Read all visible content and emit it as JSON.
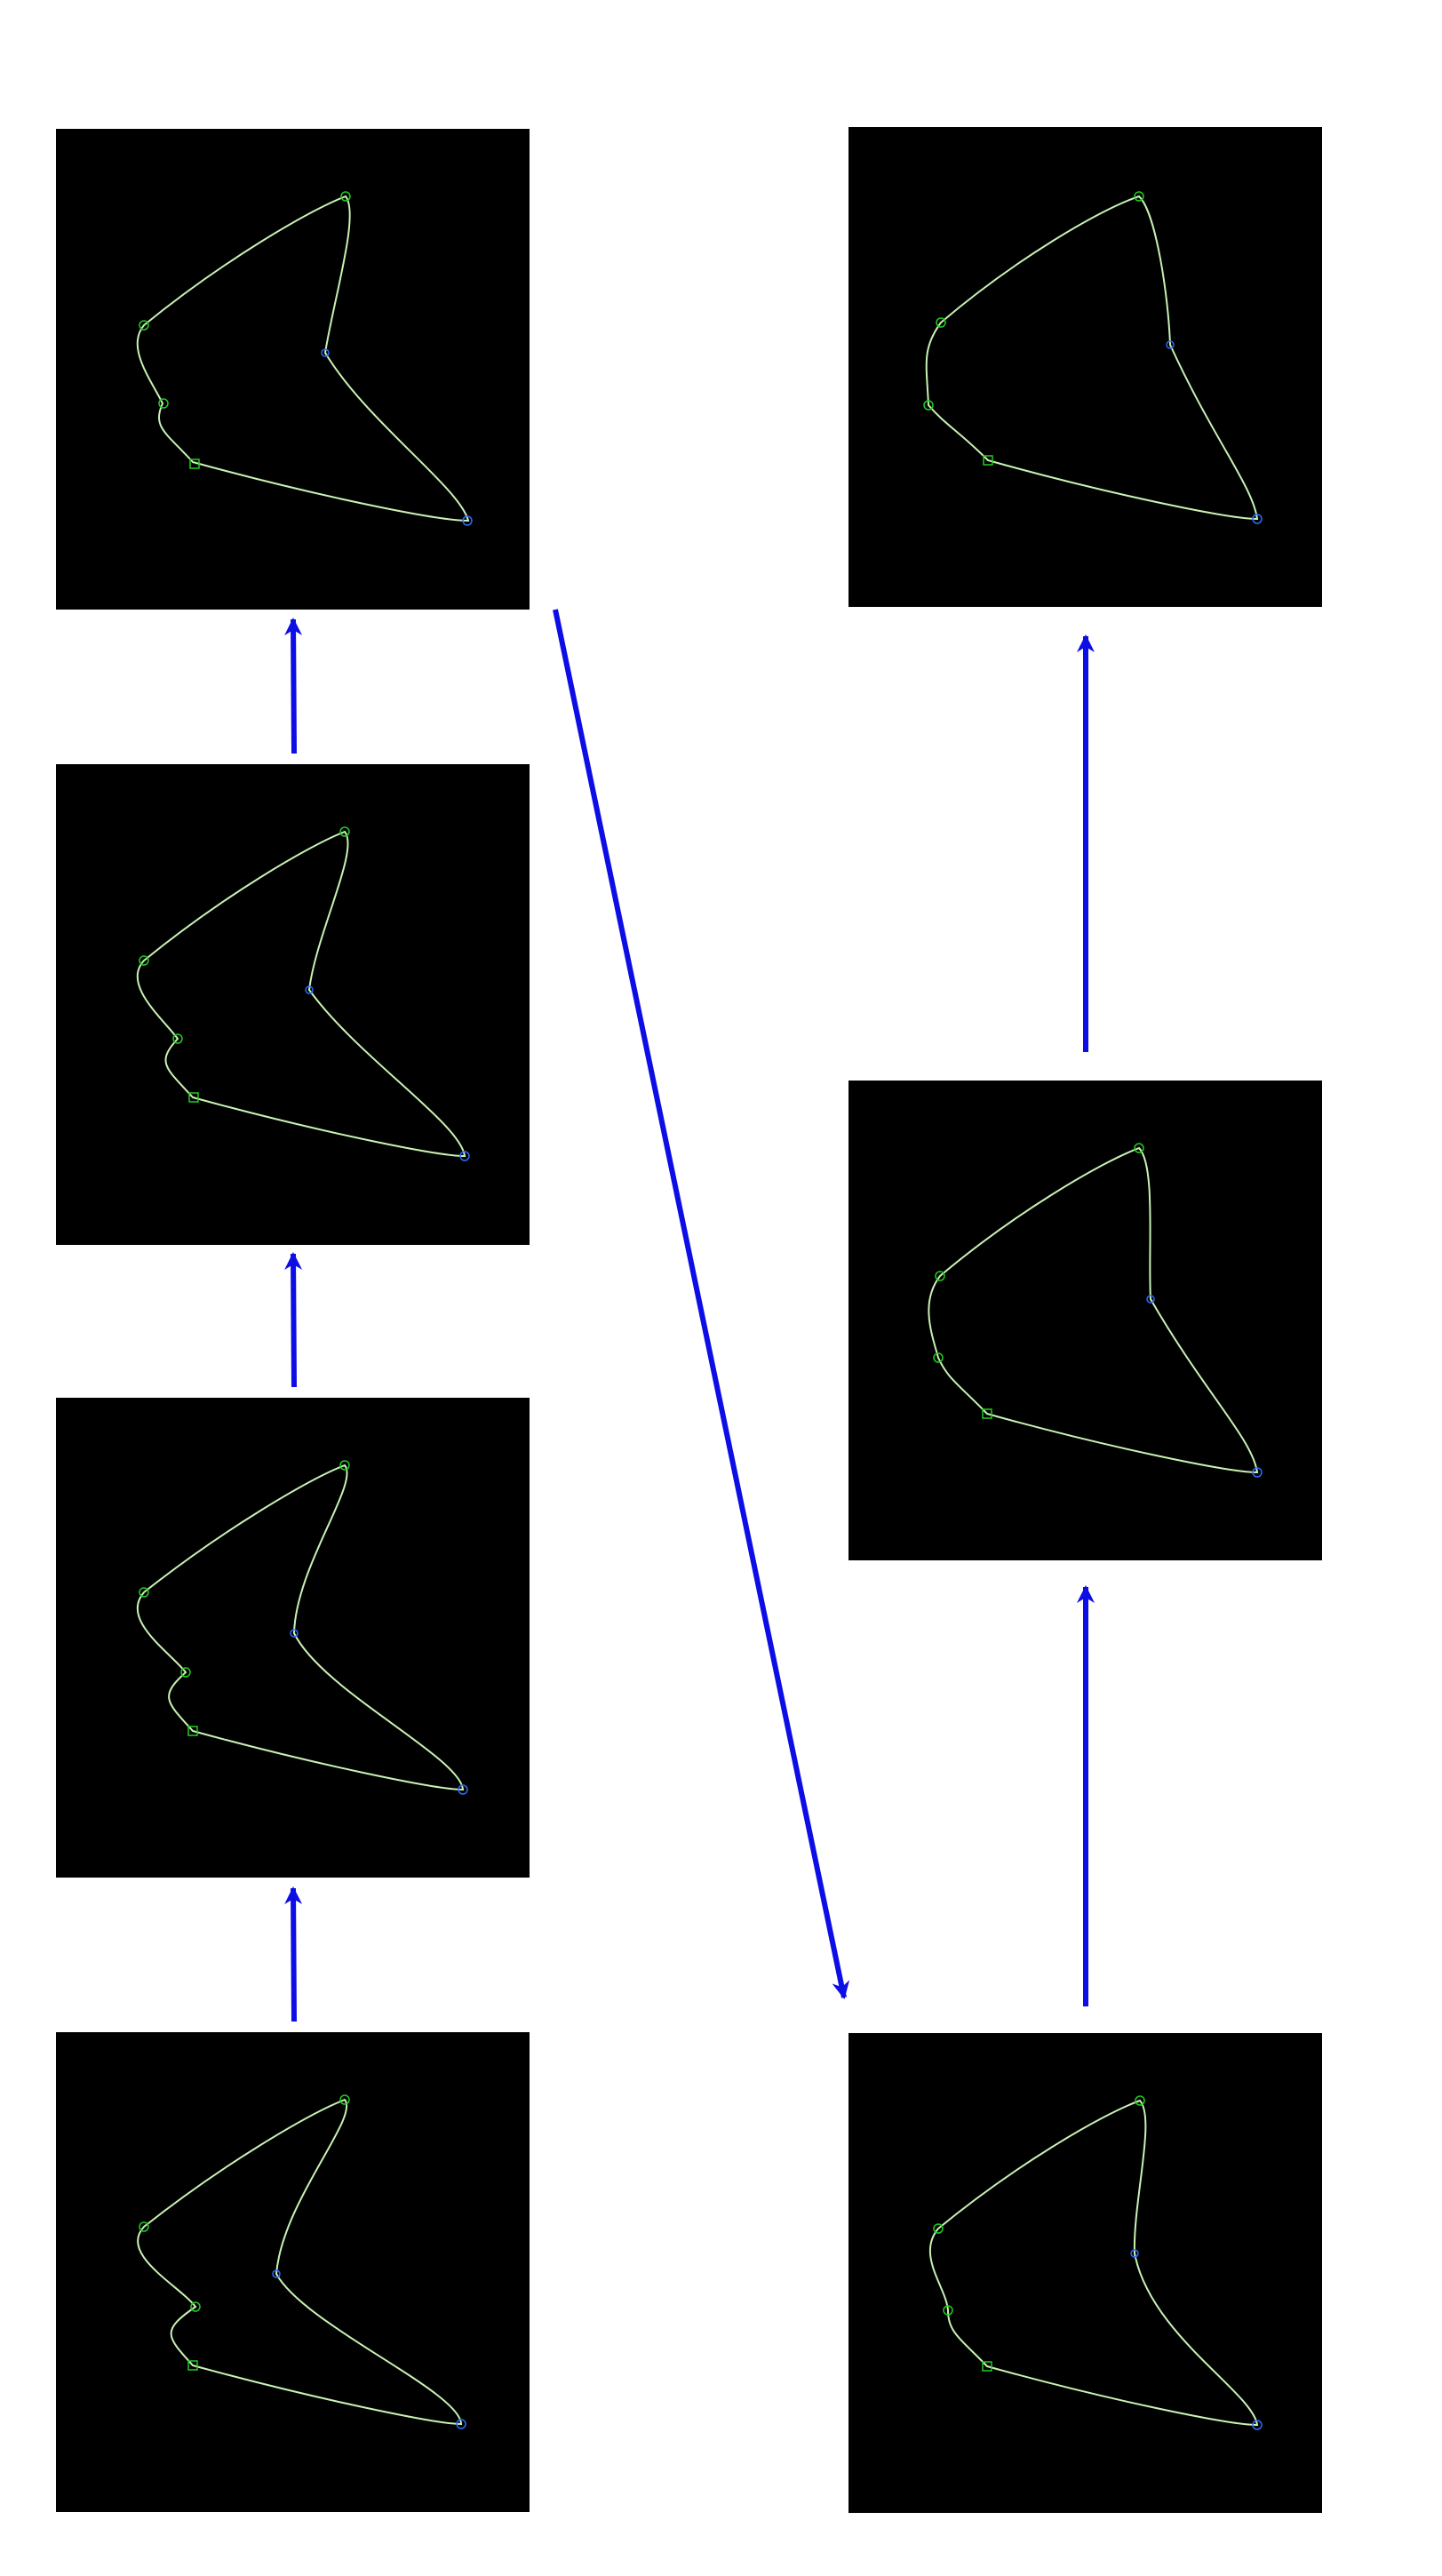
{
  "diagram": {
    "background": "#ffffff",
    "panel_background": "#000000",
    "curve_color": "#c9f2b4",
    "marker_green": "#22cc22",
    "marker_blue": "#2a6cff",
    "arrow_color": "#0d0de6",
    "panel_count": 7,
    "arrow_count": 6
  }
}
